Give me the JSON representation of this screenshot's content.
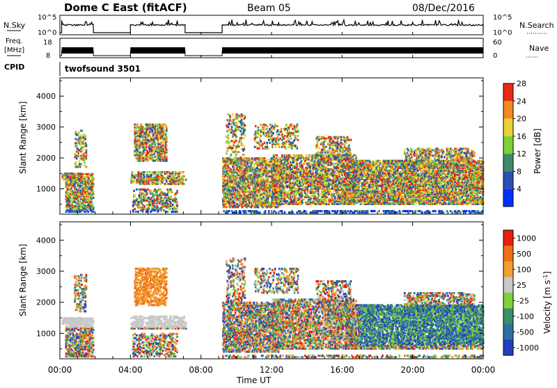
{
  "header": {
    "title": "Dome C East (fitACF)",
    "beam": "Beam 05",
    "date": "08/Dec/2016"
  },
  "top_panels": {
    "nsky_label": "N.Sky",
    "nsky_ticks": [
      "10^5",
      "10^0"
    ],
    "nsearch_label": "N.Search",
    "nsearch_ticks": [
      "10^5",
      "10^0"
    ],
    "freq_label_line1": "Freq.",
    "freq_label_line2": "[MHz]",
    "freq_ticks": [
      "18",
      "8"
    ],
    "nave_label": "Nave",
    "nave_ticks": [
      "60",
      "0"
    ],
    "cpid_label": "CPID",
    "cpid_value": "twofsound 3501"
  },
  "chart_data": [
    {
      "type": "heatmap",
      "quantity": "Power",
      "ylabel": "Slant Range [km]",
      "ylim": [
        180,
        4590
      ],
      "yticks": [
        1000,
        2000,
        3000,
        4000
      ],
      "xlim_hours": [
        0,
        24
      ],
      "colorbar": {
        "label": "Power [dB]",
        "ticks": [
          "4",
          "8",
          "12",
          "16",
          "20",
          "24",
          "28"
        ],
        "colors": [
          "#0030ff",
          "#2a4fb0",
          "#3f8a6a",
          "#7fcf3a",
          "#e8d23a",
          "#f08a1e",
          "#e82a14"
        ]
      }
    },
    {
      "type": "heatmap",
      "quantity": "Velocity",
      "ylabel": "Slant Range [km]",
      "ylim": [
        180,
        4590
      ],
      "yticks": [
        1000,
        2000,
        3000,
        4000
      ],
      "xlim_hours": [
        0,
        24
      ],
      "xlabel": "Time UT",
      "xticks": [
        "00:00",
        "04:00",
        "08:00",
        "12:00",
        "16:00",
        "20:00",
        "00:00"
      ],
      "colorbar": {
        "label": "Velocity [m s^-1]",
        "ticks": [
          "1000",
          "500",
          "100",
          "25",
          "-25",
          "-100",
          "-500",
          "-1000"
        ],
        "colors": [
          "#2040c0",
          "#2f6fa0",
          "#3a8f6a",
          "#7fd03a",
          "#c8c8c8",
          "#f0a030",
          "#f07018",
          "#e82010"
        ]
      }
    }
  ]
}
